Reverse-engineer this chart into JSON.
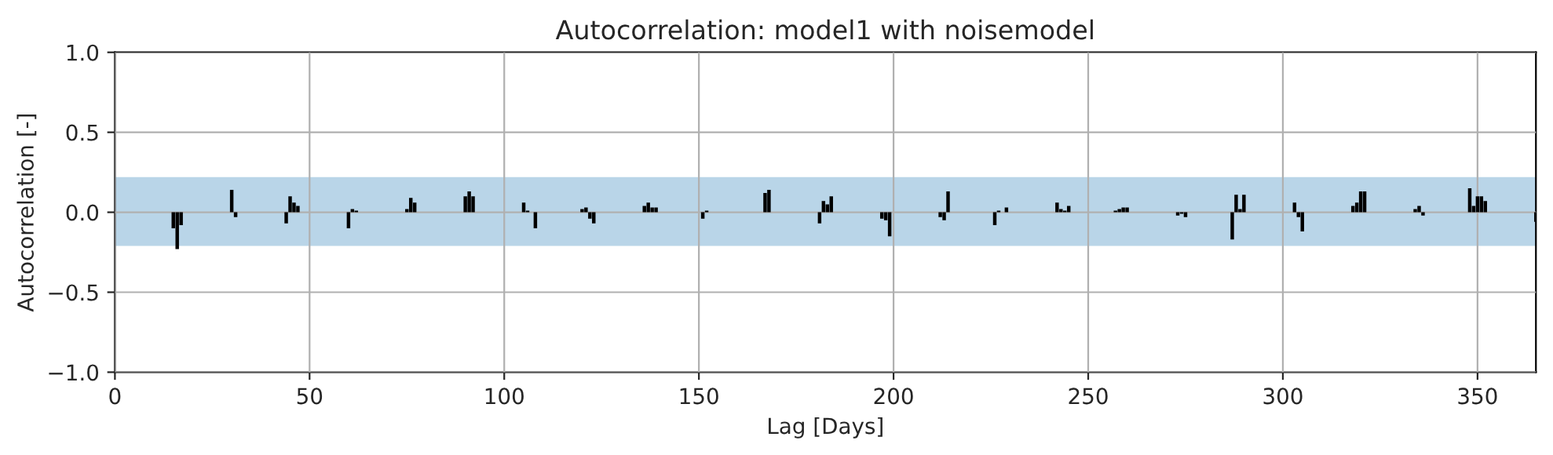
{
  "chart_data": {
    "type": "bar",
    "title": "Autocorrelation: model1 with noisemodel",
    "xlabel": "Lag [Days]",
    "ylabel": "Autocorrelation [-]",
    "series": [
      {
        "color": "#000000",
        "x": [
          15,
          16,
          17,
          30,
          31,
          44,
          45,
          46,
          47,
          60,
          61,
          62,
          75,
          76,
          77,
          90,
          91,
          92,
          105,
          106,
          108,
          120,
          121,
          122,
          123,
          136,
          137,
          138,
          139,
          151,
          152,
          167,
          168,
          181,
          182,
          183,
          184,
          197,
          198,
          199,
          212,
          213,
          214,
          226,
          227,
          229,
          242,
          243,
          244,
          245,
          257,
          258,
          259,
          260,
          273,
          274,
          275,
          287,
          288,
          289,
          290,
          303,
          304,
          305,
          318,
          319,
          320,
          321,
          334,
          335,
          336,
          348,
          349,
          350,
          351,
          352,
          365
        ],
        "values": [
          -0.1,
          -0.23,
          -0.08,
          0.14,
          -0.03,
          -0.07,
          0.1,
          0.06,
          0.04,
          -0.1,
          0.02,
          0.01,
          0.02,
          0.09,
          0.06,
          0.1,
          0.13,
          0.1,
          0.06,
          0.01,
          -0.1,
          0.02,
          0.03,
          -0.04,
          -0.07,
          0.04,
          0.06,
          0.03,
          0.03,
          -0.04,
          0.01,
          0.12,
          0.14,
          -0.07,
          0.07,
          0.05,
          0.1,
          -0.04,
          -0.05,
          -0.15,
          -0.03,
          -0.05,
          0.13,
          -0.08,
          0.01,
          0.03,
          0.06,
          0.02,
          0.01,
          0.04,
          0.01,
          0.02,
          0.03,
          0.03,
          -0.02,
          -0.01,
          -0.03,
          -0.17,
          0.11,
          0.02,
          0.11,
          0.06,
          -0.03,
          -0.12,
          0.04,
          0.06,
          0.13,
          0.13,
          0.02,
          0.04,
          -0.02,
          0.15,
          0.04,
          0.1,
          0.1,
          0.07,
          -0.06
        ]
      }
    ],
    "xlim": [
      0,
      365
    ],
    "xticks": [
      0,
      50,
      100,
      150,
      200,
      250,
      300,
      350
    ],
    "ylim": [
      -1,
      1
    ],
    "yticks": [
      {
        "value": -1,
        "label": "−1.0"
      },
      {
        "value": -0.5,
        "label": "−0.5"
      },
      {
        "value": 0,
        "label": "0.0"
      },
      {
        "value": 0.5,
        "label": "0.5"
      },
      {
        "value": 1,
        "label": "1.0"
      }
    ],
    "bands": [
      {
        "axis": "y",
        "from": -0.21,
        "to": 0.22,
        "color": "#b9d5e8"
      }
    ],
    "grid": true
  }
}
